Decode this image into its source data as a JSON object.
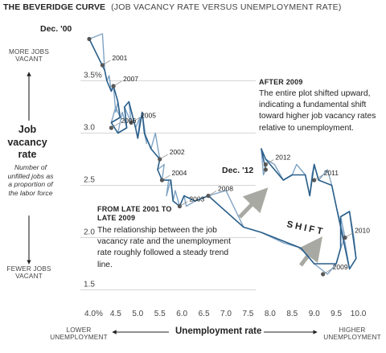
{
  "header": {
    "title": "THE BEVERIDGE CURVE",
    "subtitle": "(JOB VACANCY RATE VERSUS UNEMPLOYMENT RATE)"
  },
  "y_axis": {
    "title": "Job vacancy rate",
    "subtitle": "Number of unfilled jobs as a proportion of the labor force",
    "top_label": "MORE JOBS VACANT",
    "bottom_label": "FEWER JOBS VACANT"
  },
  "x_axis": {
    "title": "Unemployment rate",
    "left_label": "LOWER UNEMPLOYMENT",
    "right_label": "HIGHER UNEMPLOYMENT"
  },
  "annotations": {
    "after2009_title": "AFTER 2009",
    "after2009_text": "The entire plot shifted upward, indicating a fundamental shift toward higher job vacancy rates relative to unemployment.",
    "before_title": "FROM LATE 2001 TO LATE 2009",
    "before_text": "The relationship between the job vacancy rate and the unemployment rate roughly followed a steady trend line.",
    "shift_label": "SHIFT",
    "start_label": "Dec. '00",
    "end_label": "Dec. '12"
  },
  "colors": {
    "line_dark": "#2a5f8a",
    "line_light": "#7fa3c4",
    "arrow": "#a9a9a3",
    "grid": "#c8c8c8",
    "text": "#222222"
  },
  "chart_data": {
    "type": "line",
    "title": "THE BEVERIDGE CURVE",
    "xlabel": "Unemployment rate",
    "ylabel": "Job vacancy rate",
    "xlim": [
      3.7,
      10.3
    ],
    "ylim": [
      1.35,
      3.95
    ],
    "x_ticks": [
      "4.0%",
      "4.5",
      "5.0",
      "5.5",
      "6.0",
      "6.5",
      "7.0",
      "7.5",
      "8.0",
      "8.5",
      "9.0",
      "9.5",
      "10.0"
    ],
    "x_tick_values": [
      4.0,
      4.5,
      5.0,
      5.5,
      6.0,
      6.5,
      7.0,
      7.5,
      8.0,
      8.5,
      9.0,
      9.5,
      10.0
    ],
    "y_ticks": [
      "3.5%",
      "3.0",
      "2.5",
      "2.0",
      "1.5"
    ],
    "y_tick_values": [
      3.5,
      3.0,
      2.5,
      2.0,
      1.5
    ],
    "grid": "horizontal",
    "points": [
      [
        3.9,
        3.9
      ],
      [
        4.2,
        3.95
      ],
      [
        4.25,
        3.6
      ],
      [
        4.3,
        3.5
      ],
      [
        4.35,
        3.55
      ],
      [
        4.4,
        3.4
      ],
      [
        4.45,
        3.45
      ],
      [
        4.5,
        3.2
      ],
      [
        4.55,
        3.3
      ],
      [
        4.6,
        3.15
      ],
      [
        4.5,
        3.25
      ],
      [
        4.4,
        3.1
      ],
      [
        4.55,
        3.0
      ],
      [
        4.65,
        3.2
      ],
      [
        4.75,
        3.05
      ],
      [
        4.7,
        3.25
      ],
      [
        4.85,
        3.1
      ],
      [
        4.8,
        3.3
      ],
      [
        4.95,
        3.05
      ],
      [
        5.05,
        3.15
      ],
      [
        5.0,
        2.95
      ],
      [
        5.1,
        3.2
      ],
      [
        5.2,
        2.9
      ],
      [
        5.15,
        3.0
      ],
      [
        5.3,
        2.85
      ],
      [
        5.4,
        3.0
      ],
      [
        5.5,
        2.75
      ],
      [
        5.45,
        2.65
      ],
      [
        5.6,
        2.7
      ],
      [
        5.55,
        2.55
      ],
      [
        5.7,
        2.55
      ],
      [
        5.65,
        2.4
      ],
      [
        5.75,
        2.55
      ],
      [
        5.8,
        2.35
      ],
      [
        5.85,
        2.45
      ],
      [
        5.95,
        2.3
      ],
      [
        6.05,
        2.4
      ],
      [
        6.1,
        2.3
      ],
      [
        6.3,
        2.35
      ],
      [
        6.6,
        2.4
      ],
      [
        7.0,
        2.45
      ],
      [
        7.4,
        2.1
      ],
      [
        7.8,
        2.05
      ],
      [
        8.3,
        1.95
      ],
      [
        8.7,
        1.9
      ],
      [
        9.0,
        1.75
      ],
      [
        9.3,
        1.65
      ],
      [
        9.5,
        1.75
      ],
      [
        9.6,
        1.9
      ],
      [
        9.7,
        2.0
      ],
      [
        9.6,
        2.2
      ],
      [
        9.8,
        2.25
      ],
      [
        9.9,
        2.0
      ],
      [
        9.95,
        1.8
      ],
      [
        9.8,
        1.7
      ],
      [
        9.7,
        1.95
      ],
      [
        9.5,
        2.3
      ],
      [
        9.4,
        2.5
      ],
      [
        9.3,
        2.65
      ],
      [
        9.1,
        2.55
      ],
      [
        9.0,
        2.7
      ],
      [
        8.95,
        2.6
      ],
      [
        8.9,
        2.4
      ],
      [
        8.8,
        2.6
      ],
      [
        8.6,
        2.7
      ],
      [
        8.5,
        2.6
      ],
      [
        8.3,
        2.55
      ],
      [
        8.1,
        2.7
      ],
      [
        7.9,
        2.75
      ],
      [
        7.8,
        2.85
      ],
      [
        7.85,
        2.6
      ],
      [
        7.9,
        2.65
      ]
    ],
    "marker_points": [
      {
        "x": 3.9,
        "y": 3.9,
        "label": "Dec. '00"
      },
      {
        "x": 4.2,
        "y": 3.65,
        "label": "2001"
      },
      {
        "x": 4.45,
        "y": 3.45,
        "label": "2007"
      },
      {
        "x": 4.85,
        "y": 3.1,
        "label": "2005"
      },
      {
        "x": 4.4,
        "y": 3.05,
        "label": "2006"
      },
      {
        "x": 5.5,
        "y": 2.75,
        "label": "2002"
      },
      {
        "x": 5.55,
        "y": 2.55,
        "label": "2004"
      },
      {
        "x": 5.95,
        "y": 2.3,
        "label": "2003"
      },
      {
        "x": 6.6,
        "y": 2.4,
        "label": "2008"
      },
      {
        "x": 9.2,
        "y": 1.65,
        "label": "2009"
      },
      {
        "x": 9.7,
        "y": 2.0,
        "label": "2010"
      },
      {
        "x": 9.0,
        "y": 2.55,
        "label": "2011"
      },
      {
        "x": 7.9,
        "y": 2.7,
        "label": "2012"
      },
      {
        "x": 7.9,
        "y": 2.65,
        "label": "Dec. '12"
      }
    ]
  }
}
